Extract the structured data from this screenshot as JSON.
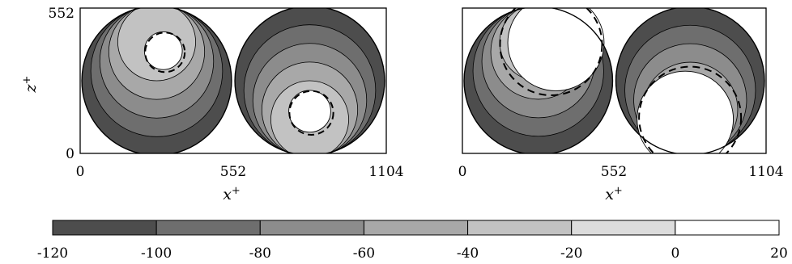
{
  "chart_data": [
    {
      "type": "heatmap",
      "panel": "left",
      "xlabel": "x",
      "xlabel_sup": "+",
      "ylabel": "z",
      "ylabel_sup": "+",
      "xticks": [
        "0",
        "552",
        "1104"
      ],
      "yticks": [
        "0",
        "552"
      ],
      "xlim": [
        0,
        1104
      ],
      "ylim": [
        0,
        552
      ],
      "contour_levels": [
        -120,
        -100,
        -80,
        -60,
        -40,
        -20,
        0,
        20
      ],
      "colors": [
        "#4d4d4d",
        "#6e6e6e",
        "#8c8c8c",
        "#a8a8a8",
        "#c2c2c2",
        "#dcdcdc",
        "#ffffff"
      ],
      "vortices": [
        {
          "center": [
            276,
            276
          ],
          "radius": 270,
          "hole_center": [
            300,
            390
          ],
          "hole_radius": 65,
          "weak_side": "top"
        },
        {
          "center": [
            828,
            276
          ],
          "radius": 270,
          "hole_center": [
            828,
            160
          ],
          "hole_radius": 72,
          "weak_side": "bottom"
        }
      ]
    },
    {
      "type": "heatmap",
      "panel": "right",
      "xlabel": "x",
      "xlabel_sup": "+",
      "xticks": [
        "0",
        "552",
        "1104"
      ],
      "xlim": [
        0,
        1104
      ],
      "ylim": [
        0,
        552
      ],
      "contour_levels": [
        -120,
        -100,
        -80,
        -60,
        -40,
        -20,
        0,
        20
      ],
      "colors": [
        "#4d4d4d",
        "#6e6e6e",
        "#8c8c8c",
        "#a8a8a8",
        "#c2c2c2",
        "#dcdcdc",
        "#ffffff"
      ],
      "vortices": [
        {
          "center": [
            276,
            276
          ],
          "radius": 270,
          "notch_center": [
            340,
            420
          ],
          "notch_radius": 175,
          "weak_side": "top"
        },
        {
          "center": [
            828,
            276
          ],
          "radius": 270,
          "notch_center": [
            810,
            130
          ],
          "notch_radius": 175,
          "weak_side": "bottom"
        }
      ]
    }
  ],
  "colorbar": {
    "ticks": [
      "-120",
      "-100",
      "-80",
      "-60",
      "-40",
      "-20",
      "0",
      "20"
    ],
    "colors": [
      "#4d4d4d",
      "#6e6e6e",
      "#8c8c8c",
      "#a8a8a8",
      "#c2c2c2",
      "#dcdcdc",
      "#ffffff"
    ]
  }
}
